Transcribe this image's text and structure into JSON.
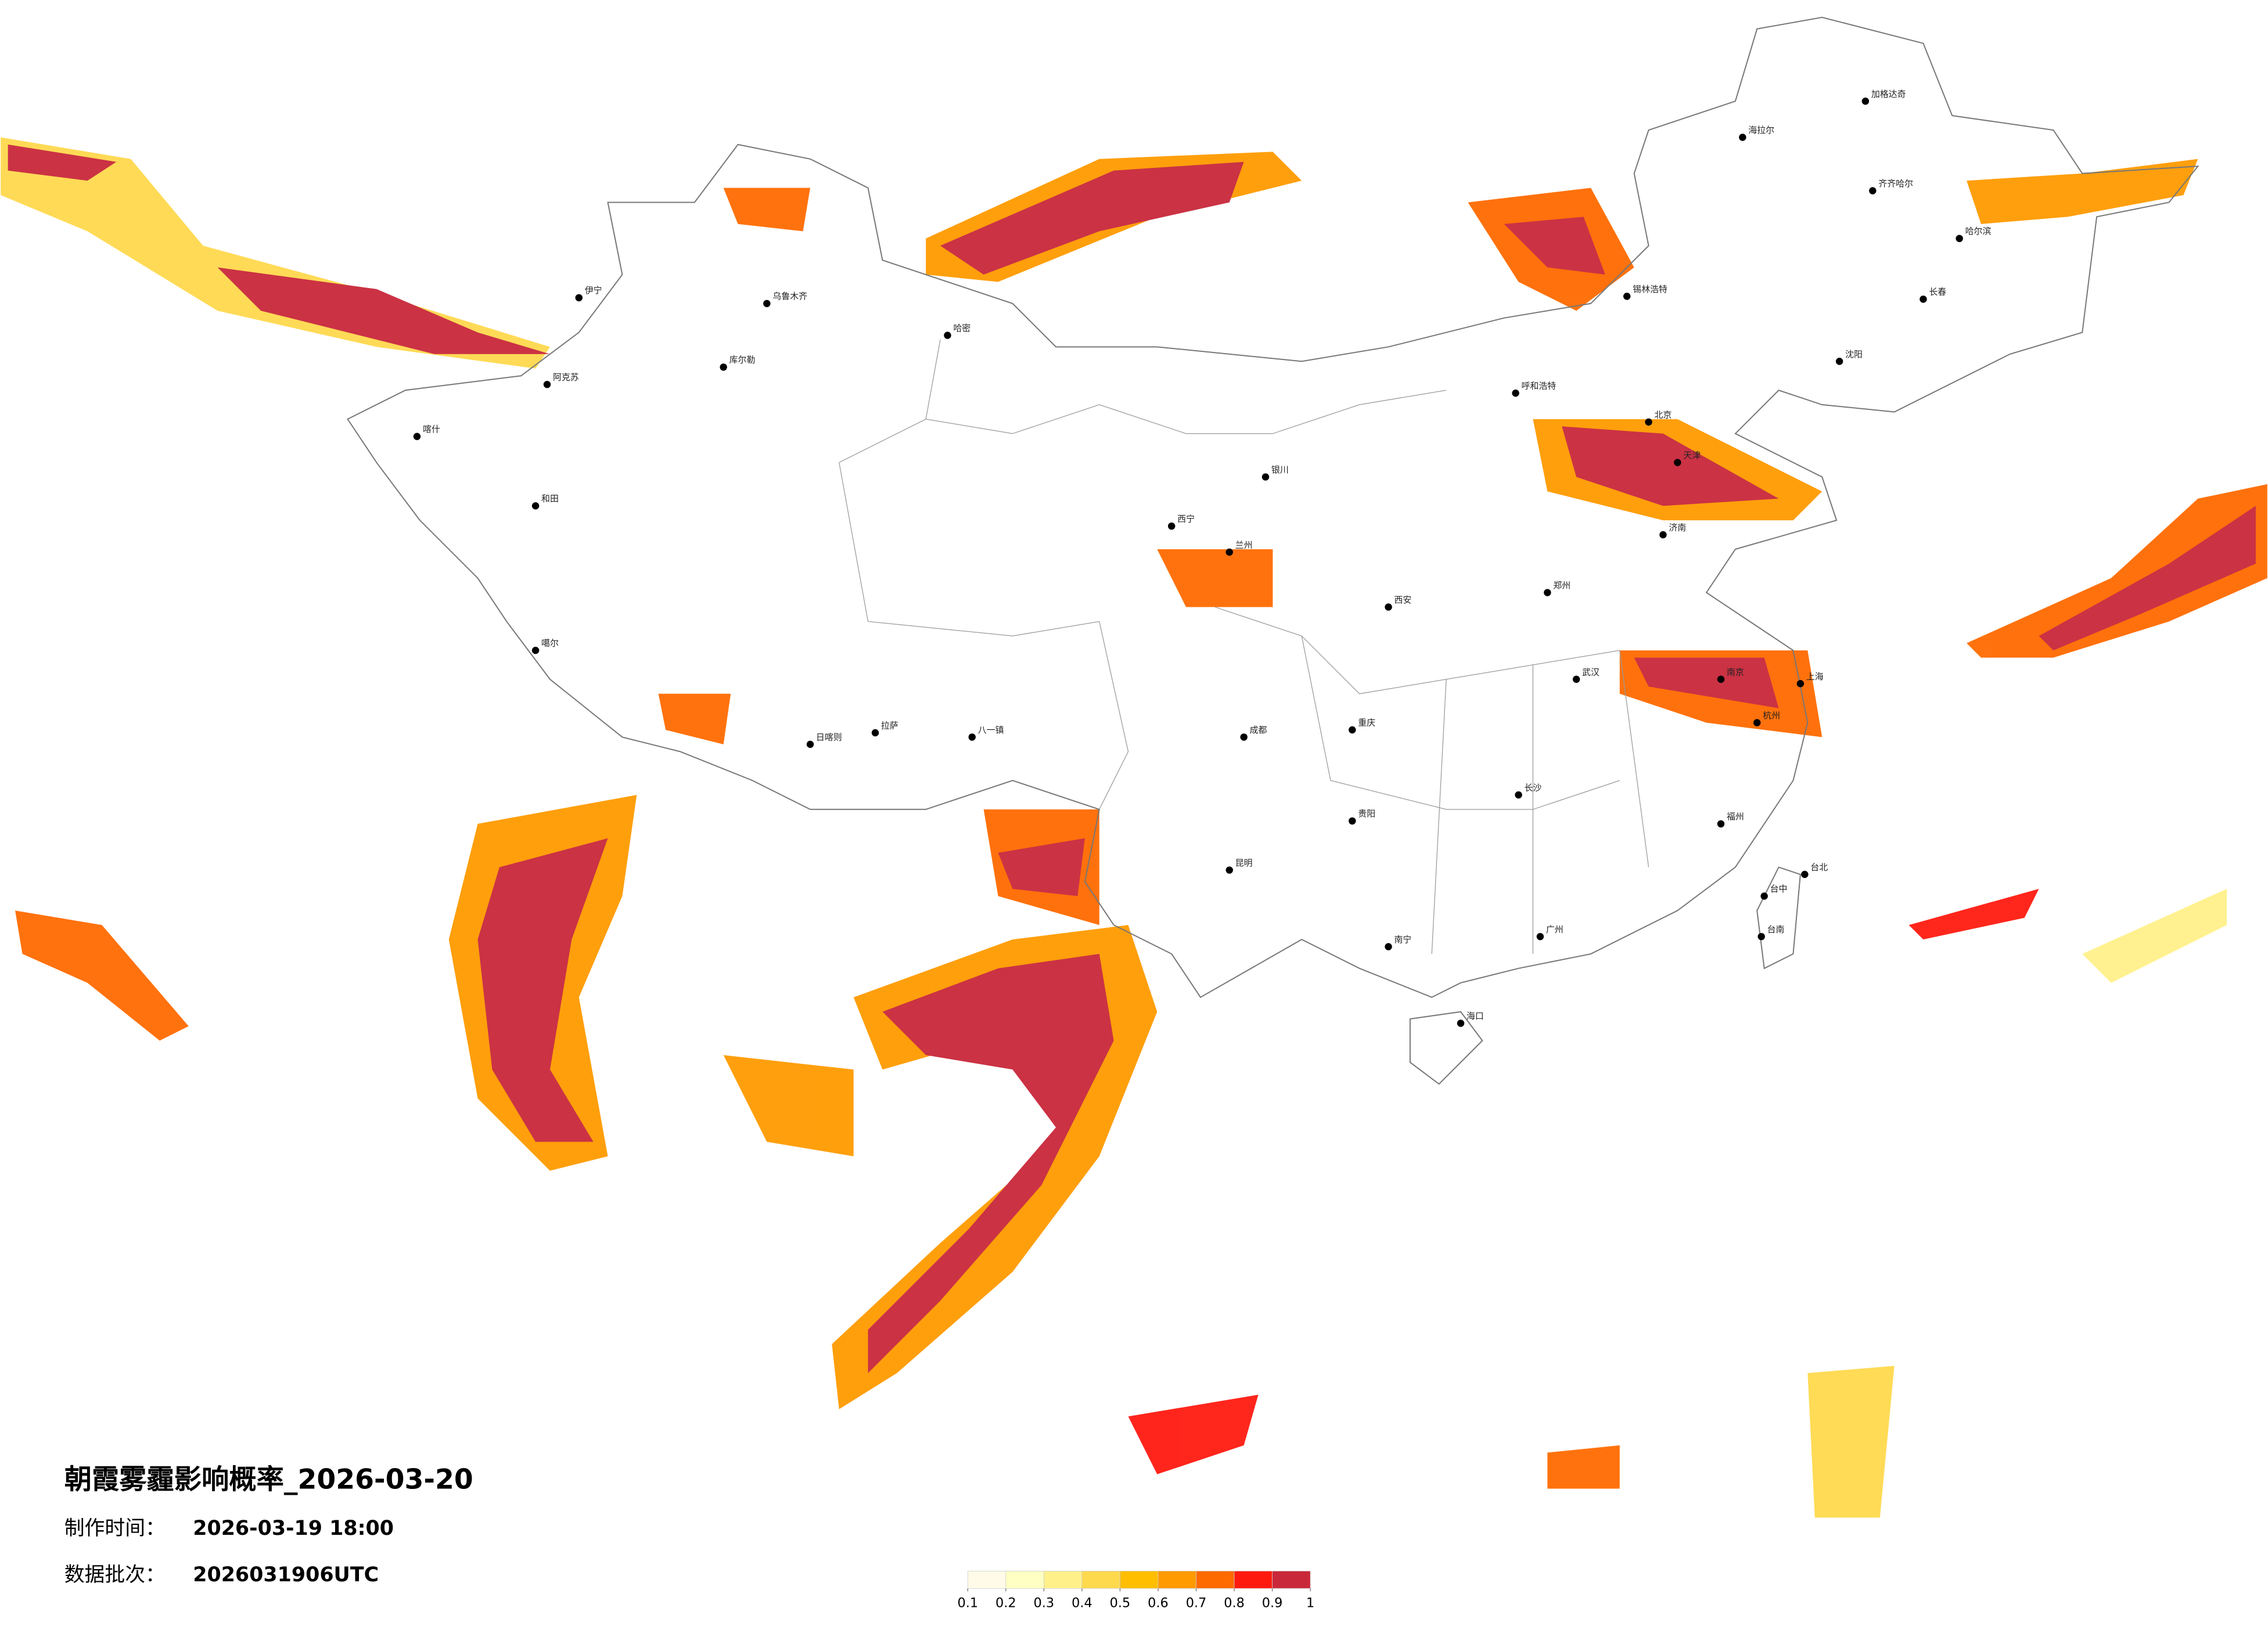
{
  "title": "朝霞雾霾影响概率_2026-03-20",
  "info": [
    {
      "label": "制作时间：",
      "value": "2026-03-19 18:00"
    },
    {
      "label": "数据批次：",
      "value": "2026031906UTC"
    }
  ],
  "legend": {
    "ticks": [
      0.1,
      0.2,
      0.3,
      0.4,
      0.5,
      0.6,
      0.7,
      0.8,
      0.9,
      1
    ],
    "colors": [
      "#fffbe8",
      "#ffffc4",
      "#fff08a",
      "#ffd94d",
      "#ffbf00",
      "#ff9a00",
      "#ff6a00",
      "#ff1a10",
      "#c9283a"
    ]
  },
  "cities": [
    "加格达奇",
    "海拉尔",
    "齐齐哈尔",
    "哈尔滨",
    "长春",
    "沈阳",
    "锡林浩特",
    "呼和浩特",
    "北京",
    "天津",
    "济南",
    "郑州",
    "西安",
    "兰州",
    "西宁",
    "银川",
    "乌鲁木齐",
    "伊宁",
    "哈密",
    "库尔勒",
    "阿克苏",
    "喀什",
    "和田",
    "噶尔",
    "日喀则",
    "拉萨",
    "八一镇",
    "成都",
    "重庆",
    "贵阳",
    "昆明",
    "南宁",
    "广州",
    "海口",
    "长沙",
    "武汉",
    "南京",
    "上海",
    "杭州",
    "福州",
    "台北",
    "台中",
    "台南"
  ]
}
